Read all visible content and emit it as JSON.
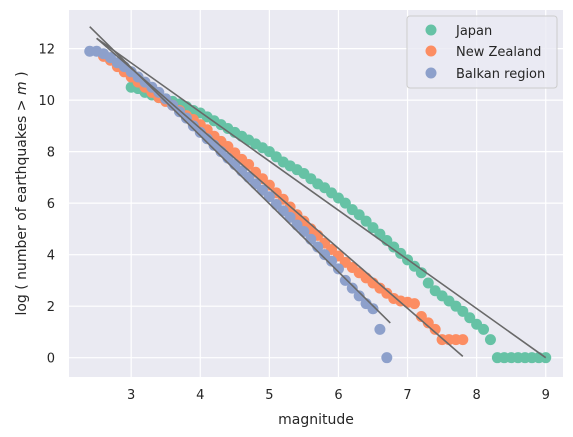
{
  "chart_data": {
    "type": "scatter",
    "xlabel": "magnitude",
    "ylabel_parts": [
      "log ( number of earthquakes ",
      ">",
      " m",
      " )"
    ],
    "xlim": [
      2.1,
      9.25
    ],
    "ylim": [
      -0.75,
      13.5
    ],
    "xticks": [
      "3",
      "4",
      "5",
      "6",
      "7",
      "8",
      "9"
    ],
    "yticks": [
      "0",
      "2",
      "4",
      "6",
      "8",
      "10",
      "12"
    ],
    "grid": true,
    "legend_position": "top-right",
    "colors": {
      "background": "#eaeaf2",
      "grid": "#ffffff",
      "fit_line": "#696969"
    },
    "series": [
      {
        "name": "Japan",
        "color": "#66c2a5",
        "points": [
          [
            3.0,
            10.5
          ],
          [
            3.1,
            10.45
          ],
          [
            3.2,
            10.3
          ],
          [
            3.3,
            10.2
          ],
          [
            3.4,
            10.1
          ],
          [
            3.5,
            10.05
          ],
          [
            3.6,
            9.95
          ],
          [
            3.7,
            9.85
          ],
          [
            3.8,
            9.75
          ],
          [
            3.9,
            9.6
          ],
          [
            4.0,
            9.5
          ],
          [
            4.1,
            9.35
          ],
          [
            4.2,
            9.2
          ],
          [
            4.3,
            9.05
          ],
          [
            4.4,
            8.9
          ],
          [
            4.5,
            8.75
          ],
          [
            4.6,
            8.6
          ],
          [
            4.7,
            8.45
          ],
          [
            4.8,
            8.3
          ],
          [
            4.9,
            8.15
          ],
          [
            5.0,
            8.0
          ],
          [
            5.1,
            7.8
          ],
          [
            5.2,
            7.6
          ],
          [
            5.3,
            7.45
          ],
          [
            5.4,
            7.3
          ],
          [
            5.5,
            7.15
          ],
          [
            5.6,
            6.95
          ],
          [
            5.7,
            6.75
          ],
          [
            5.8,
            6.6
          ],
          [
            5.9,
            6.4
          ],
          [
            6.0,
            6.2
          ],
          [
            6.1,
            6.0
          ],
          [
            6.2,
            5.75
          ],
          [
            6.3,
            5.55
          ],
          [
            6.4,
            5.3
          ],
          [
            6.5,
            5.05
          ],
          [
            6.6,
            4.8
          ],
          [
            6.7,
            4.55
          ],
          [
            6.8,
            4.3
          ],
          [
            6.9,
            4.05
          ],
          [
            7.0,
            3.8
          ],
          [
            7.1,
            3.55
          ],
          [
            7.2,
            3.3
          ],
          [
            7.3,
            2.9
          ],
          [
            7.4,
            2.6
          ],
          [
            7.5,
            2.4
          ],
          [
            7.6,
            2.2
          ],
          [
            7.7,
            2.0
          ],
          [
            7.8,
            1.8
          ],
          [
            7.9,
            1.55
          ],
          [
            8.0,
            1.3
          ],
          [
            8.1,
            1.1
          ],
          [
            8.2,
            0.7
          ],
          [
            8.3,
            0.0
          ],
          [
            8.4,
            0.0
          ],
          [
            8.5,
            0.0
          ],
          [
            8.6,
            0.0
          ],
          [
            8.7,
            0.0
          ],
          [
            8.8,
            0.0
          ],
          [
            8.9,
            0.0
          ],
          [
            9.0,
            0.0
          ]
        ]
      },
      {
        "name": "New Zealand",
        "color": "#fc8d62",
        "points": [
          [
            2.6,
            11.7
          ],
          [
            2.7,
            11.55
          ],
          [
            2.8,
            11.3
          ],
          [
            2.9,
            11.1
          ],
          [
            3.0,
            10.9
          ],
          [
            3.1,
            10.7
          ],
          [
            3.2,
            10.5
          ],
          [
            3.3,
            10.3
          ],
          [
            3.4,
            10.1
          ],
          [
            3.5,
            9.95
          ],
          [
            3.6,
            9.8
          ],
          [
            3.7,
            9.6
          ],
          [
            3.8,
            9.4
          ],
          [
            3.9,
            9.25
          ],
          [
            4.0,
            9.05
          ],
          [
            4.1,
            8.85
          ],
          [
            4.2,
            8.6
          ],
          [
            4.3,
            8.4
          ],
          [
            4.4,
            8.2
          ],
          [
            4.5,
            7.95
          ],
          [
            4.6,
            7.7
          ],
          [
            4.7,
            7.5
          ],
          [
            4.8,
            7.2
          ],
          [
            4.9,
            6.95
          ],
          [
            5.0,
            6.7
          ],
          [
            5.1,
            6.4
          ],
          [
            5.2,
            6.15
          ],
          [
            5.3,
            5.85
          ],
          [
            5.4,
            5.55
          ],
          [
            5.5,
            5.3
          ],
          [
            5.6,
            5.0
          ],
          [
            5.7,
            4.75
          ],
          [
            5.8,
            4.45
          ],
          [
            5.9,
            4.2
          ],
          [
            6.0,
            3.95
          ],
          [
            6.1,
            3.7
          ],
          [
            6.2,
            3.5
          ],
          [
            6.3,
            3.3
          ],
          [
            6.4,
            3.1
          ],
          [
            6.5,
            2.9
          ],
          [
            6.6,
            2.7
          ],
          [
            6.7,
            2.5
          ],
          [
            6.8,
            2.3
          ],
          [
            6.9,
            2.2
          ],
          [
            7.0,
            2.15
          ],
          [
            7.1,
            2.1
          ],
          [
            7.2,
            1.6
          ],
          [
            7.3,
            1.35
          ],
          [
            7.4,
            1.1
          ],
          [
            7.5,
            0.7
          ],
          [
            7.6,
            0.7
          ],
          [
            7.7,
            0.7
          ],
          [
            7.8,
            0.7
          ]
        ]
      },
      {
        "name": "Balkan region",
        "color": "#8da0cb",
        "points": [
          [
            2.4,
            11.9
          ],
          [
            2.5,
            11.9
          ],
          [
            2.6,
            11.8
          ],
          [
            2.7,
            11.65
          ],
          [
            2.8,
            11.45
          ],
          [
            2.9,
            11.3
          ],
          [
            3.0,
            11.1
          ],
          [
            3.1,
            10.9
          ],
          [
            3.2,
            10.7
          ],
          [
            3.3,
            10.5
          ],
          [
            3.4,
            10.3
          ],
          [
            3.5,
            10.05
          ],
          [
            3.6,
            9.8
          ],
          [
            3.7,
            9.55
          ],
          [
            3.8,
            9.3
          ],
          [
            3.9,
            9.0
          ],
          [
            4.0,
            8.75
          ],
          [
            4.1,
            8.5
          ],
          [
            4.2,
            8.25
          ],
          [
            4.3,
            8.0
          ],
          [
            4.4,
            7.75
          ],
          [
            4.5,
            7.5
          ],
          [
            4.6,
            7.25
          ],
          [
            4.7,
            7.0
          ],
          [
            4.8,
            6.75
          ],
          [
            4.9,
            6.5
          ],
          [
            5.0,
            6.25
          ],
          [
            5.1,
            5.95
          ],
          [
            5.2,
            5.7
          ],
          [
            5.3,
            5.45
          ],
          [
            5.4,
            5.15
          ],
          [
            5.5,
            4.9
          ],
          [
            5.6,
            4.6
          ],
          [
            5.7,
            4.3
          ],
          [
            5.8,
            4.0
          ],
          [
            5.9,
            3.75
          ],
          [
            6.0,
            3.45
          ],
          [
            6.1,
            3.0
          ],
          [
            6.2,
            2.7
          ],
          [
            6.3,
            2.4
          ],
          [
            6.4,
            2.1
          ],
          [
            6.5,
            1.9
          ],
          [
            6.6,
            1.1
          ],
          [
            6.7,
            0.0
          ]
        ]
      }
    ],
    "fit_lines": [
      {
        "x1": 2.5,
        "y1": 12.4,
        "x2": 9.0,
        "y2": 0.0
      },
      {
        "x1": 2.5,
        "y1": 12.4,
        "x2": 7.8,
        "y2": 0.05
      },
      {
        "x1": 2.4,
        "y1": 12.85,
        "x2": 6.75,
        "y2": 1.35
      }
    ]
  }
}
